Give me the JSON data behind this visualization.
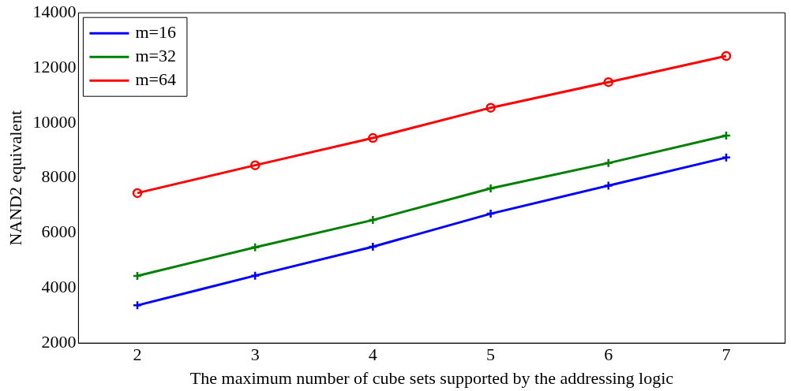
{
  "chart_data": {
    "type": "line",
    "xlabel": "The maximum number of cube sets supported by the addressing logic",
    "ylabel": "NAND2 equivalent",
    "x": [
      2,
      3,
      4,
      5,
      6,
      7
    ],
    "series": [
      {
        "name": "m=16",
        "color": "#0000ff",
        "marker": "cross",
        "values": [
          3370,
          4450,
          5500,
          6700,
          7720,
          8740
        ]
      },
      {
        "name": "m=32",
        "color": "#007f00",
        "marker": "cross",
        "values": [
          4440,
          5480,
          6470,
          7620,
          8540,
          9540
        ]
      },
      {
        "name": "m=64",
        "color": "#ff0000",
        "marker": "circle",
        "values": [
          7450,
          8460,
          9450,
          10550,
          11480,
          12430
        ]
      }
    ],
    "xlim": [
      1.5,
      7.5
    ],
    "xticks": [
      2,
      3,
      4,
      5,
      6,
      7
    ],
    "ylim": [
      2000,
      14000
    ],
    "yticks": [
      2000,
      4000,
      6000,
      8000,
      10000,
      12000,
      14000
    ],
    "grid": false,
    "legend": "top left",
    "line_style": "solid"
  }
}
